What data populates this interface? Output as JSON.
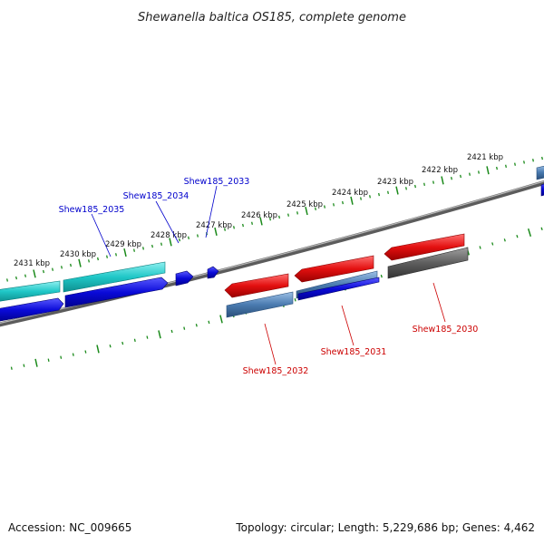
{
  "title": "Shewanella baltica OS185, complete genome",
  "footer": {
    "accession": "Accession: NC_009665",
    "topology": "Topology: circular; Length: 5,229,686 bp; Genes: 4,462"
  },
  "ticks": [
    "2421 kbp",
    "2422 kbp",
    "2423 kbp",
    "2424 kbp",
    "2425 kbp",
    "2426 kbp",
    "2427 kbp",
    "2428 kbp",
    "2429 kbp",
    "2430 kbp",
    "2431 kbp"
  ],
  "genes": {
    "top": [
      "Shew185_2033",
      "Shew185_2034",
      "Shew185_2035"
    ],
    "bottom": [
      "Shew185_2030",
      "Shew185_2031",
      "Shew185_2032"
    ]
  },
  "colors": {
    "cyan": "#1fc7c7",
    "blue": "#0a0ad8",
    "red": "#e31010",
    "steelblue": "#4a7bb0",
    "gray": "#5e5e5e",
    "backbone": "#888888",
    "tick": "#1a8a1a",
    "label_top": "#0000cc",
    "label_bottom": "#cc0000"
  }
}
